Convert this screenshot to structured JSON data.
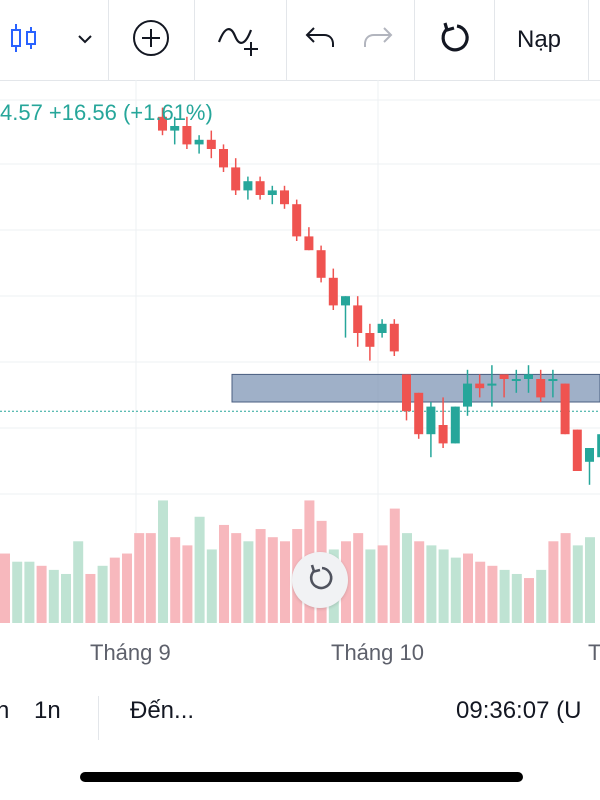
{
  "toolbar": {
    "candles_icon": "candles-icon",
    "refresh_label": "Nạp"
  },
  "legend": {
    "change_text": "4.57 +16.56 (+1.61%)"
  },
  "time_axis": {
    "labels": [
      "Tháng 9",
      "Tháng 10",
      "T"
    ]
  },
  "bottom_bar": {
    "left_fragment": "n",
    "interval": "1n",
    "goto": "Đến...",
    "clock": "09:36:07 (U"
  },
  "colors": {
    "up": "#26a69a",
    "down": "#ef5350",
    "up_volume": "#bfe3d3",
    "down_volume": "#f7b8bd",
    "zone": "#7f96b5",
    "grid": "#eef0f3"
  },
  "chart_data": {
    "type": "candlestick",
    "title": "",
    "xlabel": "",
    "ylabel": "",
    "candles": [
      {
        "o": 82,
        "h": 84,
        "l": 78,
        "c": 79
      },
      {
        "o": 79,
        "h": 82,
        "l": 76,
        "c": 80
      },
      {
        "o": 80,
        "h": 82,
        "l": 75,
        "c": 76
      },
      {
        "o": 76,
        "h": 78,
        "l": 74,
        "c": 77
      },
      {
        "o": 77,
        "h": 79,
        "l": 73,
        "c": 75
      },
      {
        "o": 75,
        "h": 76,
        "l": 70,
        "c": 71
      },
      {
        "o": 71,
        "h": 73,
        "l": 65,
        "c": 66
      },
      {
        "o": 66,
        "h": 69,
        "l": 64,
        "c": 68
      },
      {
        "o": 68,
        "h": 69,
        "l": 64,
        "c": 65
      },
      {
        "o": 65,
        "h": 67,
        "l": 63,
        "c": 66
      },
      {
        "o": 66,
        "h": 67,
        "l": 62,
        "c": 63
      },
      {
        "o": 63,
        "h": 64,
        "l": 55,
        "c": 56
      },
      {
        "o": 56,
        "h": 58,
        "l": 53,
        "c": 53
      },
      {
        "o": 53,
        "h": 54,
        "l": 46,
        "c": 47
      },
      {
        "o": 47,
        "h": 49,
        "l": 40,
        "c": 41
      },
      {
        "o": 41,
        "h": 43,
        "l": 34,
        "c": 43
      },
      {
        "o": 41,
        "h": 43,
        "l": 32,
        "c": 35
      },
      {
        "o": 35,
        "h": 37,
        "l": 29,
        "c": 32
      },
      {
        "o": 35,
        "h": 38,
        "l": 34,
        "c": 37
      },
      {
        "o": 37,
        "h": 38,
        "l": 30,
        "c": 31
      },
      {
        "o": 26,
        "h": 26,
        "l": 16,
        "c": 18
      },
      {
        "o": 22,
        "h": 22,
        "l": 12,
        "c": 13
      },
      {
        "o": 13,
        "h": 20,
        "l": 8,
        "c": 19
      },
      {
        "o": 15,
        "h": 21,
        "l": 10,
        "c": 11
      },
      {
        "o": 11,
        "h": 19,
        "l": 11,
        "c": 19
      },
      {
        "o": 19,
        "h": 27,
        "l": 17,
        "c": 24
      },
      {
        "o": 24,
        "h": 26,
        "l": 21,
        "c": 23
      },
      {
        "o": 24,
        "h": 28,
        "l": 19,
        "c": 24
      },
      {
        "o": 26,
        "h": 26,
        "l": 21,
        "c": 25
      },
      {
        "o": 25,
        "h": 27,
        "l": 22,
        "c": 25
      },
      {
        "o": 25,
        "h": 28,
        "l": 22,
        "c": 26
      },
      {
        "o": 25,
        "h": 27,
        "l": 20,
        "c": 21
      },
      {
        "o": 25,
        "h": 27,
        "l": 21,
        "c": 25
      },
      {
        "o": 24,
        "h": 24,
        "l": 13,
        "c": 13
      },
      {
        "o": 14,
        "h": 14,
        "l": 5,
        "c": 5
      },
      {
        "o": 7,
        "h": 10,
        "l": 2,
        "c": 10
      },
      {
        "o": 8,
        "h": 13,
        "l": 4,
        "c": 13
      }
    ],
    "volume": [
      {
        "v": 44,
        "d": "down"
      },
      {
        "v": 60,
        "d": "up"
      },
      {
        "v": 42,
        "d": "down"
      },
      {
        "v": 38,
        "d": "down"
      },
      {
        "v": 52,
        "d": "up"
      },
      {
        "v": 36,
        "d": "up"
      },
      {
        "v": 48,
        "d": "down"
      },
      {
        "v": 44,
        "d": "down"
      },
      {
        "v": 40,
        "d": "up"
      },
      {
        "v": 46,
        "d": "down"
      },
      {
        "v": 42,
        "d": "down"
      },
      {
        "v": 40,
        "d": "down"
      },
      {
        "v": 46,
        "d": "down"
      },
      {
        "v": 60,
        "d": "down"
      },
      {
        "v": 50,
        "d": "down"
      },
      {
        "v": 36,
        "d": "up"
      },
      {
        "v": 40,
        "d": "down"
      },
      {
        "v": 44,
        "d": "down"
      },
      {
        "v": 36,
        "d": "up"
      },
      {
        "v": 38,
        "d": "down"
      },
      {
        "v": 56,
        "d": "down"
      },
      {
        "v": 44,
        "d": "up"
      },
      {
        "v": 40,
        "d": "down"
      },
      {
        "v": 38,
        "d": "up"
      },
      {
        "v": 36,
        "d": "up"
      },
      {
        "v": 32,
        "d": "up"
      },
      {
        "v": 34,
        "d": "down"
      },
      {
        "v": 30,
        "d": "down"
      },
      {
        "v": 28,
        "d": "down"
      },
      {
        "v": 26,
        "d": "up"
      },
      {
        "v": 24,
        "d": "up"
      },
      {
        "v": 22,
        "d": "down"
      },
      {
        "v": 26,
        "d": "up"
      },
      {
        "v": 40,
        "d": "down"
      },
      {
        "v": 44,
        "d": "down"
      },
      {
        "v": 38,
        "d": "up"
      },
      {
        "v": 42,
        "d": "up"
      }
    ],
    "resistance_zone": {
      "from": 20,
      "to": 26
    },
    "price_line": 18,
    "ylim": [
      -10,
      90
    ],
    "volume_max": 70
  }
}
